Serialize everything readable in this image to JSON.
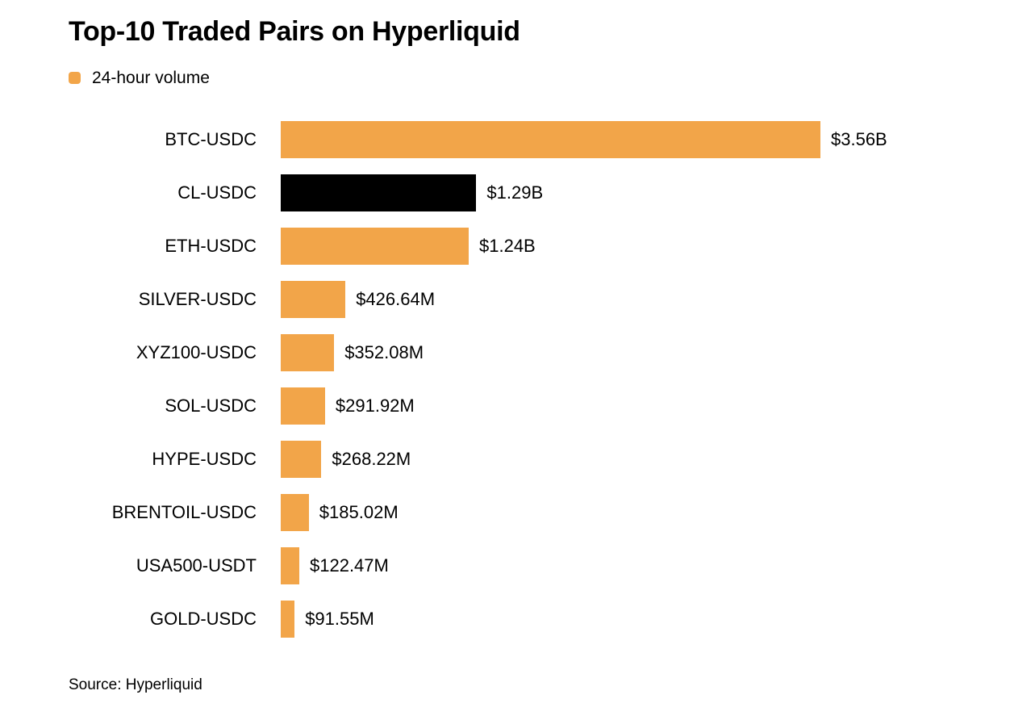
{
  "page": {
    "background": "#ffffff"
  },
  "header": {
    "title": "Top-10 Traded Pairs on Hyperliquid"
  },
  "legend": {
    "label": "24-hour volume",
    "swatch_color": "#F2A549"
  },
  "footer": {
    "source": "Source: Hyperliquid"
  },
  "colors": {
    "orange": "#F2A549",
    "black": "#000000",
    "text": "#000000",
    "background": "#ffffff"
  },
  "chart_data": {
    "type": "bar",
    "orientation": "horizontal",
    "title": "Top-10 Traded Pairs on Hyperliquid",
    "legend": [
      "24-hour volume"
    ],
    "legend_position": "top-left",
    "source": "Source: Hyperliquid",
    "unit": "USD",
    "grid": false,
    "categories": [
      "BTC-USDC",
      "CL-USDC",
      "ETH-USDC",
      "SILVER-USDC",
      "XYZ100-USDC",
      "SOL-USDC",
      "HYPE-USDC",
      "BRENTOIL-USDC",
      "USA500-USDT",
      "GOLD-USDC"
    ],
    "values_millions_usd": [
      3560,
      1290,
      1240,
      426.64,
      352.08,
      291.92,
      268.22,
      185.02,
      122.47,
      91.55
    ],
    "value_labels": [
      "$3.56B",
      "$1.29B",
      "$1.24B",
      "$426.64M",
      "$352.08M",
      "$291.92M",
      "$268.22M",
      "$185.02M",
      "$122.47M",
      "$91.55M"
    ],
    "bar_colors": [
      "orange",
      "black",
      "orange",
      "orange",
      "orange",
      "orange",
      "orange",
      "orange",
      "orange",
      "orange"
    ],
    "xlim_millions_usd": [
      0,
      3560
    ]
  }
}
